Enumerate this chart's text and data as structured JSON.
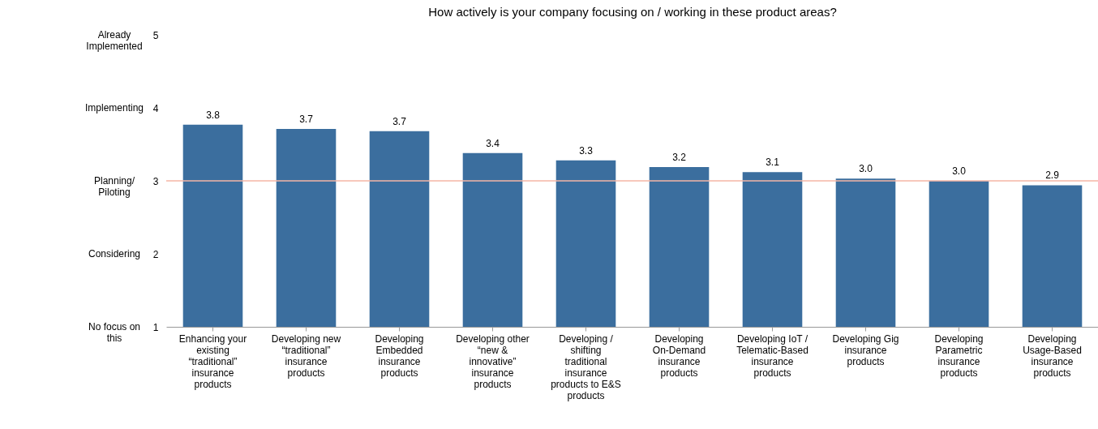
{
  "chart_data": {
    "type": "bar",
    "title": "How actively is your company focusing on / working in these product areas?",
    "categories": [
      "Enhancing your existing “traditional” insurance products",
      "Developing new “traditional” insurance products",
      "Developing Embedded insurance products",
      "Developing other “new & innovative” insurance products",
      "Developing / shifting traditional insurance products to E&S products",
      "Developing On-Demand insurance products",
      "Developing IoT / Telematic-Based insurance products",
      "Developing Gig insurance products",
      "Developing Parametric insurance products",
      "Developing Usage-Based insurance products"
    ],
    "values": [
      3.77,
      3.71,
      3.68,
      3.38,
      3.28,
      3.19,
      3.12,
      3.03,
      3.0,
      2.94
    ],
    "value_labels": [
      "3.8",
      "3.7",
      "3.7",
      "3.4",
      "3.3",
      "3.2",
      "3.1",
      "3.0",
      "3.0",
      "2.9"
    ],
    "color": "#3b6e9e",
    "ylim": [
      1,
      5
    ],
    "yticks": [
      1,
      2,
      3,
      4,
      5
    ],
    "annotations": [
      "No focus on this",
      "Considering",
      "Planning/ Piloting",
      "Implementing",
      "Already Implemented"
    ],
    "ref_lines": [
      {
        "axis": "y",
        "value": 3,
        "color": "#f4b6a6"
      }
    ],
    "grid": false
  }
}
